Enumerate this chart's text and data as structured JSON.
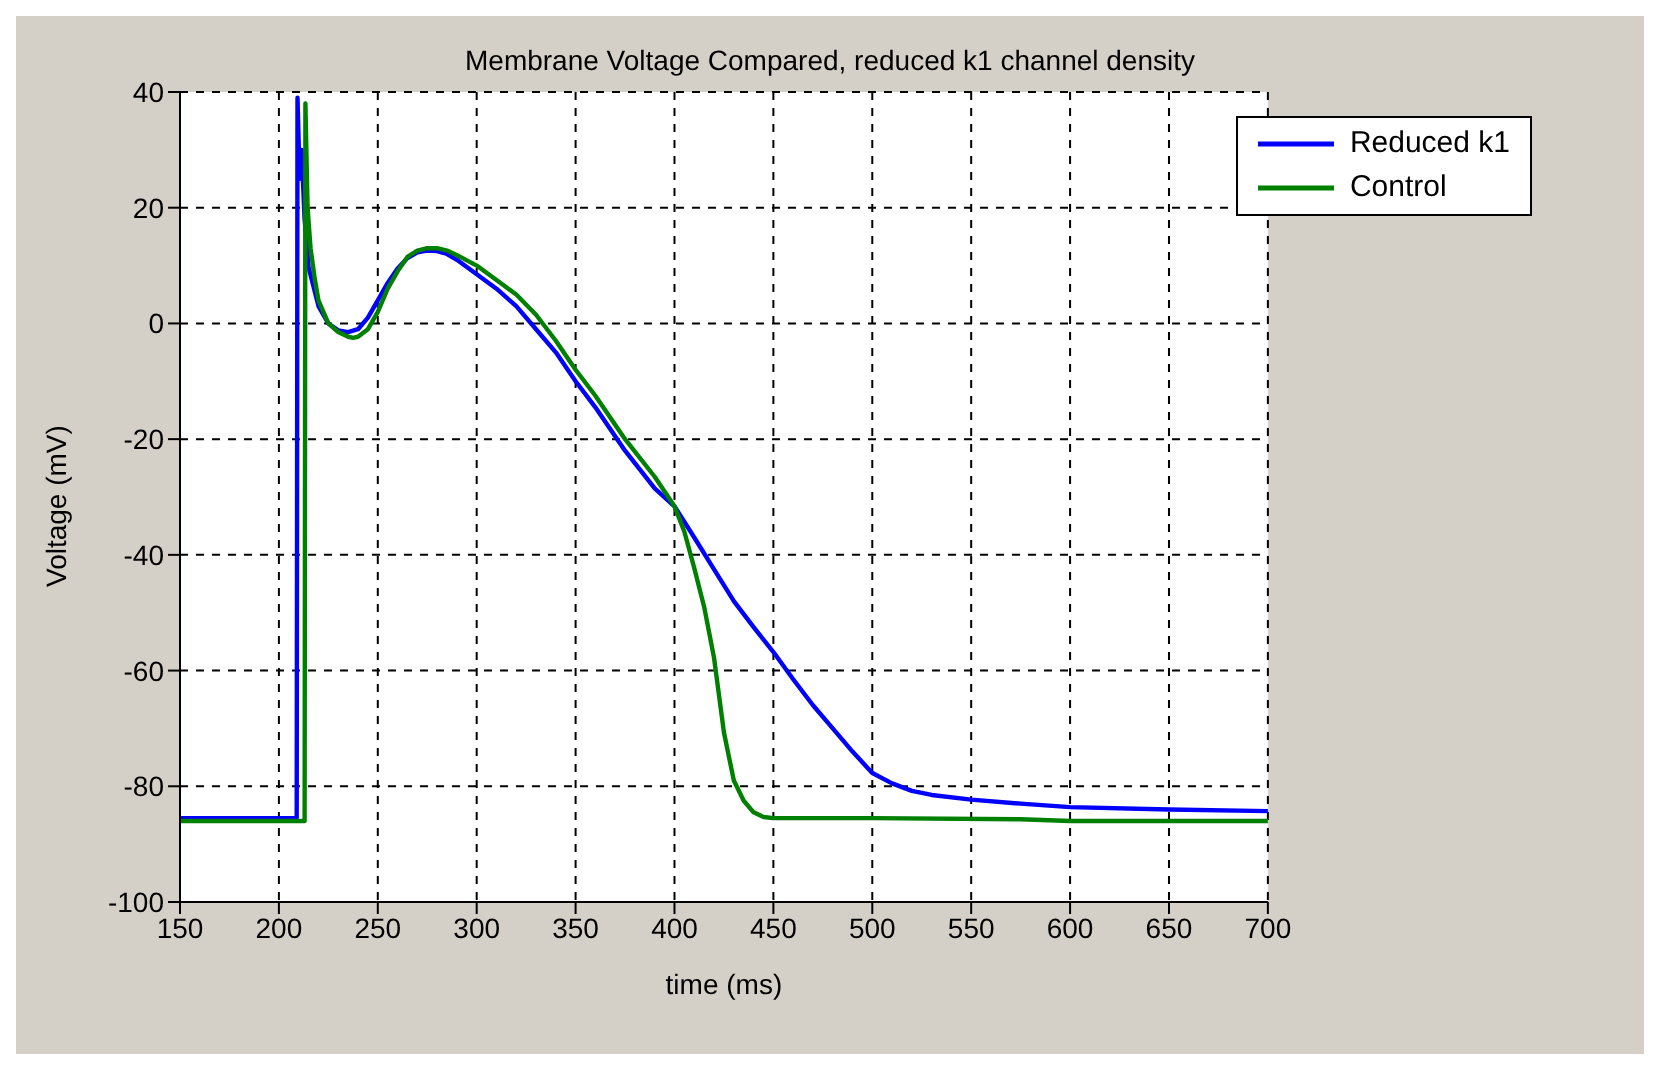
{
  "chart_data": {
    "type": "line",
    "title": "Membrane Voltage Compared, reduced k1 channel density",
    "xlabel": "time (ms)",
    "ylabel": "Voltage (mV)",
    "xlim": [
      150,
      700
    ],
    "ylim": [
      -100,
      40
    ],
    "xticks": [
      150,
      200,
      250,
      300,
      350,
      400,
      450,
      500,
      550,
      600,
      650,
      700
    ],
    "yticks": [
      -100,
      -80,
      -60,
      -40,
      -20,
      0,
      20,
      40
    ],
    "grid": true,
    "legend": "top right",
    "line_style": "solid",
    "marker": "none",
    "series": [
      {
        "name": "Reduced k1",
        "color": "#0000ff",
        "x": [
          150,
          209,
          209.4,
          210.5,
          211.5,
          213,
          215,
          220,
          225,
          230,
          235,
          240,
          245,
          250,
          255,
          260,
          265,
          270,
          275,
          280,
          285,
          290,
          300,
          310,
          320,
          330,
          340,
          350,
          360,
          375,
          390,
          400,
          410,
          420,
          430,
          440,
          450,
          460,
          470,
          480,
          490,
          500,
          510,
          520,
          530,
          550,
          575,
          600,
          650,
          700
        ],
        "values": [
          -85.5,
          -85.5,
          39,
          25,
          30,
          18,
          9.7,
          3,
          0,
          -1.2,
          -1.5,
          -1,
          1,
          4,
          7,
          9.5,
          11.3,
          12.3,
          12.6,
          12.5,
          12,
          11,
          8.5,
          6,
          3,
          -1,
          -5,
          -10,
          -14.5,
          -22,
          -28.5,
          -31.6,
          -37,
          -42.5,
          -48,
          -52.5,
          -56.8,
          -61.5,
          -66,
          -70,
          -74,
          -77.7,
          -79.5,
          -80.8,
          -81.5,
          -82.3,
          -83,
          -83.6,
          -84,
          -84.3
        ]
      },
      {
        "name": "Control",
        "color": "#008000",
        "x": [
          150,
          213,
          213.4,
          214.5,
          216,
          218,
          220,
          225,
          230,
          235,
          237.5,
          240,
          245,
          250,
          255,
          260,
          265,
          270,
          275,
          280,
          285,
          290,
          300,
          310,
          320,
          330,
          340,
          350,
          360,
          375,
          390,
          400,
          405,
          410,
          415,
          420,
          425,
          430,
          435,
          440,
          445,
          450,
          500,
          575,
          600,
          650,
          700
        ],
        "values": [
          -86,
          -86,
          38,
          20,
          13,
          8,
          4,
          0,
          -1.5,
          -2.3,
          -2.5,
          -2.3,
          -1,
          2,
          6,
          9,
          11.5,
          12.6,
          13,
          13,
          12.6,
          11.8,
          10,
          7.5,
          5,
          1.5,
          -3,
          -8,
          -12.5,
          -20,
          -26.5,
          -31.6,
          -36,
          -42.3,
          -49,
          -57.8,
          -70.7,
          -79,
          -82.5,
          -84.5,
          -85.3,
          -85.5,
          -85.5,
          -85.7,
          -86,
          -86,
          -86
        ]
      }
    ]
  }
}
